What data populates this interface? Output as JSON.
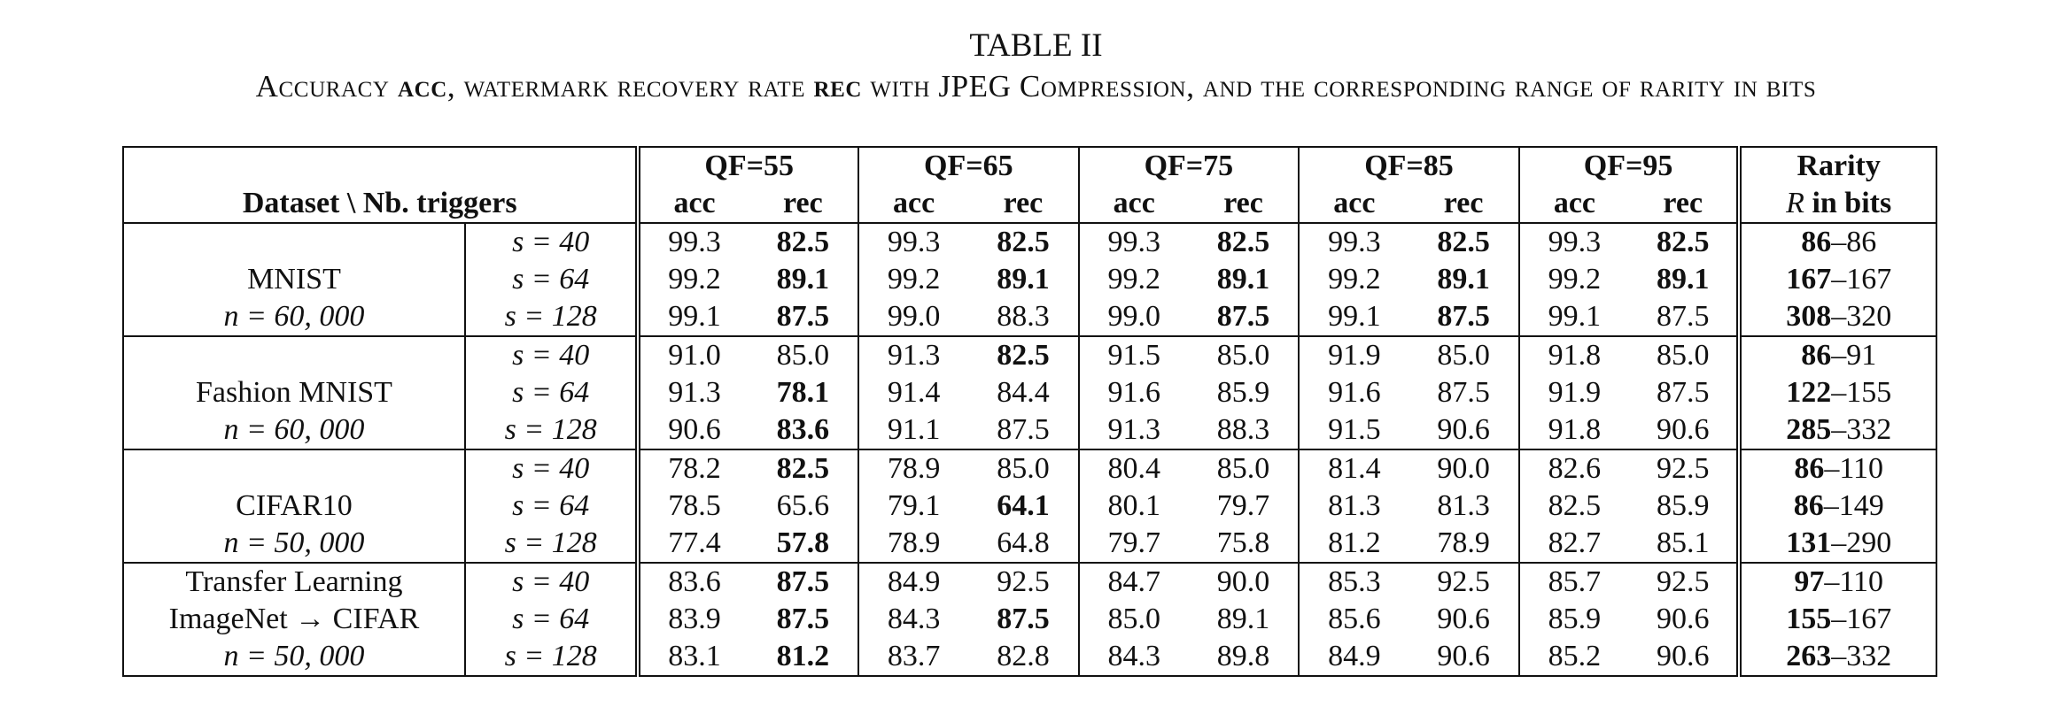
{
  "caption": {
    "label": "TABLE II",
    "text_parts": [
      {
        "t": "Accuracy ",
        "b": false
      },
      {
        "t": "acc",
        "b": true
      },
      {
        "t": ", watermark recovery rate ",
        "b": false
      },
      {
        "t": "rec",
        "b": true
      },
      {
        "t": " with JPEG Compression, and the corresponding range of rarity in bits",
        "b": false
      }
    ]
  },
  "header": {
    "dataset_col": "Dataset \\ Nb. triggers",
    "qf_groups": [
      "QF=55",
      "QF=65",
      "QF=75",
      "QF=85",
      "QF=95"
    ],
    "sub_acc": "acc",
    "sub_rec": "rec",
    "rarity_top": "Rarity",
    "rarity_bottom_var": "R",
    "rarity_bottom_text": " in bits"
  },
  "groups": [
    {
      "labels": [
        {
          "text": "",
          "style": "normal"
        },
        {
          "text": "MNIST",
          "style": "bold"
        },
        {
          "text": "n = 60, 000",
          "style": "math"
        }
      ],
      "rows": [
        {
          "s": "s = 40",
          "vals": [
            [
              "99.3",
              false
            ],
            [
              "82.5",
              true
            ],
            [
              "99.3",
              false
            ],
            [
              "82.5",
              true
            ],
            [
              "99.3",
              false
            ],
            [
              "82.5",
              true
            ],
            [
              "99.3",
              false
            ],
            [
              "82.5",
              true
            ],
            [
              "99.3",
              false
            ],
            [
              "82.5",
              true
            ]
          ],
          "rarity_lo": "86",
          "rarity_hi": "86",
          "lo_bold": true,
          "hi_bold": true
        },
        {
          "s": "s = 64",
          "vals": [
            [
              "99.2",
              false
            ],
            [
              "89.1",
              true
            ],
            [
              "99.2",
              false
            ],
            [
              "89.1",
              true
            ],
            [
              "99.2",
              false
            ],
            [
              "89.1",
              true
            ],
            [
              "99.2",
              false
            ],
            [
              "89.1",
              true
            ],
            [
              "99.2",
              false
            ],
            [
              "89.1",
              true
            ]
          ],
          "rarity_lo": "167",
          "rarity_hi": "167",
          "lo_bold": true,
          "hi_bold": true
        },
        {
          "s": "s = 128",
          "vals": [
            [
              "99.1",
              false
            ],
            [
              "87.5",
              true
            ],
            [
              "99.0",
              false
            ],
            [
              "88.3",
              false
            ],
            [
              "99.0",
              false
            ],
            [
              "87.5",
              true
            ],
            [
              "99.1",
              false
            ],
            [
              "87.5",
              true
            ],
            [
              "99.1",
              false
            ],
            [
              "87.5",
              false
            ]
          ],
          "rarity_lo": "308",
          "rarity_hi": "320",
          "lo_bold": true,
          "hi_bold": true
        }
      ]
    },
    {
      "labels": [
        {
          "text": "",
          "style": "normal"
        },
        {
          "text": "Fashion MNIST",
          "style": "bold"
        },
        {
          "text": "n = 60, 000",
          "style": "math"
        }
      ],
      "rows": [
        {
          "s": "s = 40",
          "vals": [
            [
              "91.0",
              false
            ],
            [
              "85.0",
              false
            ],
            [
              "91.3",
              false
            ],
            [
              "82.5",
              true
            ],
            [
              "91.5",
              false
            ],
            [
              "85.0",
              false
            ],
            [
              "91.9",
              false
            ],
            [
              "85.0",
              false
            ],
            [
              "91.8",
              false
            ],
            [
              "85.0",
              false
            ]
          ],
          "rarity_lo": "86",
          "rarity_hi": "91",
          "lo_bold": true,
          "hi_bold": true
        },
        {
          "s": "s = 64",
          "vals": [
            [
              "91.3",
              false
            ],
            [
              "78.1",
              true
            ],
            [
              "91.4",
              false
            ],
            [
              "84.4",
              false
            ],
            [
              "91.6",
              false
            ],
            [
              "85.9",
              false
            ],
            [
              "91.6",
              false
            ],
            [
              "87.5",
              false
            ],
            [
              "91.9",
              false
            ],
            [
              "87.5",
              false
            ]
          ],
          "rarity_lo": "122",
          "rarity_hi": "155",
          "lo_bold": true,
          "hi_bold": true
        },
        {
          "s": "s = 128",
          "vals": [
            [
              "90.6",
              false
            ],
            [
              "83.6",
              true
            ],
            [
              "91.1",
              false
            ],
            [
              "87.5",
              false
            ],
            [
              "91.3",
              false
            ],
            [
              "88.3",
              false
            ],
            [
              "91.5",
              false
            ],
            [
              "90.6",
              false
            ],
            [
              "91.8",
              false
            ],
            [
              "90.6",
              false
            ]
          ],
          "rarity_lo": "285",
          "rarity_hi": "332",
          "lo_bold": true,
          "hi_bold": true
        }
      ]
    },
    {
      "labels": [
        {
          "text": "",
          "style": "normal"
        },
        {
          "text": "CIFAR10",
          "style": "bold"
        },
        {
          "text": "n = 50, 000",
          "style": "math"
        }
      ],
      "rows": [
        {
          "s": "s = 40",
          "vals": [
            [
              "78.2",
              false
            ],
            [
              "82.5",
              true
            ],
            [
              "78.9",
              false
            ],
            [
              "85.0",
              false
            ],
            [
              "80.4",
              false
            ],
            [
              "85.0",
              false
            ],
            [
              "81.4",
              false
            ],
            [
              "90.0",
              false
            ],
            [
              "82.6",
              false
            ],
            [
              "92.5",
              false
            ]
          ],
          "rarity_lo": "86",
          "rarity_hi": "110",
          "lo_bold": true,
          "hi_bold": true
        },
        {
          "s": "s = 64",
          "vals": [
            [
              "78.5",
              false
            ],
            [
              "65.6",
              false
            ],
            [
              "79.1",
              false
            ],
            [
              "64.1",
              true
            ],
            [
              "80.1",
              false
            ],
            [
              "79.7",
              false
            ],
            [
              "81.3",
              false
            ],
            [
              "81.3",
              false
            ],
            [
              "82.5",
              false
            ],
            [
              "85.9",
              false
            ]
          ],
          "rarity_lo": "86",
          "rarity_hi": "149",
          "lo_bold": true,
          "hi_bold": true
        },
        {
          "s": "s = 128",
          "vals": [
            [
              "77.4",
              false
            ],
            [
              "57.8",
              true
            ],
            [
              "78.9",
              false
            ],
            [
              "64.8",
              false
            ],
            [
              "79.7",
              false
            ],
            [
              "75.8",
              false
            ],
            [
              "81.2",
              false
            ],
            [
              "78.9",
              false
            ],
            [
              "82.7",
              false
            ],
            [
              "85.1",
              false
            ]
          ],
          "rarity_lo": "131",
          "rarity_hi": "290",
          "lo_bold": true,
          "hi_bold": true
        }
      ]
    },
    {
      "labels": [
        {
          "text": "Transfer Learning",
          "style": "normal"
        },
        {
          "text": "ImageNet → CIFAR",
          "style": "bold"
        },
        {
          "text": "n = 50, 000",
          "style": "math"
        }
      ],
      "rows": [
        {
          "s": "s = 40",
          "vals": [
            [
              "83.6",
              false
            ],
            [
              "87.5",
              true
            ],
            [
              "84.9",
              false
            ],
            [
              "92.5",
              false
            ],
            [
              "84.7",
              false
            ],
            [
              "90.0",
              false
            ],
            [
              "85.3",
              false
            ],
            [
              "92.5",
              false
            ],
            [
              "85.7",
              false
            ],
            [
              "92.5",
              false
            ]
          ],
          "rarity_lo": "97",
          "rarity_hi": "110",
          "lo_bold": true,
          "hi_bold": true
        },
        {
          "s": "s = 64",
          "vals": [
            [
              "83.9",
              false
            ],
            [
              "87.5",
              true
            ],
            [
              "84.3",
              false
            ],
            [
              "87.5",
              true
            ],
            [
              "85.0",
              false
            ],
            [
              "89.1",
              false
            ],
            [
              "85.6",
              false
            ],
            [
              "90.6",
              false
            ],
            [
              "85.9",
              false
            ],
            [
              "90.6",
              false
            ]
          ],
          "rarity_lo": "155",
          "rarity_hi": "167",
          "lo_bold": true,
          "hi_bold": true
        },
        {
          "s": "s = 128",
          "vals": [
            [
              "83.1",
              false
            ],
            [
              "81.2",
              true
            ],
            [
              "83.7",
              false
            ],
            [
              "82.8",
              false
            ],
            [
              "84.3",
              false
            ],
            [
              "89.8",
              false
            ],
            [
              "84.9",
              false
            ],
            [
              "90.6",
              false
            ],
            [
              "85.2",
              false
            ],
            [
              "90.6",
              false
            ]
          ],
          "rarity_lo": "263",
          "rarity_hi": "332",
          "lo_bold": true,
          "hi_bold": true
        }
      ]
    }
  ]
}
